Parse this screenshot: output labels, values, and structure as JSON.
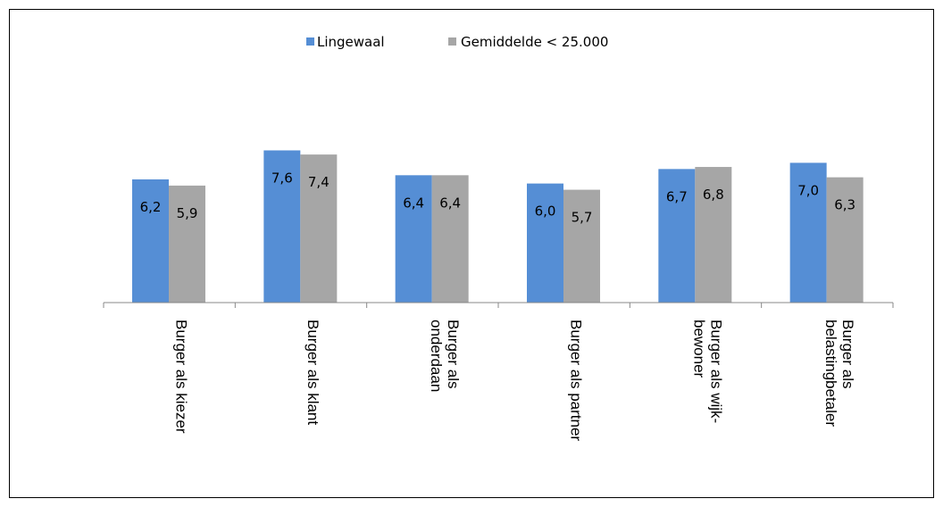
{
  "chart_data": {
    "type": "bar",
    "categories": [
      [
        "Burger als kiezer"
      ],
      [
        "Burger als klant"
      ],
      [
        "Burger als",
        "onderdaan"
      ],
      [
        "Burger als partner"
      ],
      [
        "Burger als wijk-",
        "bewoner"
      ],
      [
        "Burger als",
        "belastingbetaler"
      ]
    ],
    "series": [
      {
        "name": "Lingewaal",
        "color": "#558ED5",
        "values": [
          6.2,
          7.6,
          6.4,
          6.0,
          6.7,
          7.0
        ],
        "labels": [
          "6,2",
          "7,6",
          "6,4",
          "6,0",
          "6,7",
          "7,0"
        ]
      },
      {
        "name": "Gemiddelde < 25.000",
        "color": "#A6A6A6",
        "values": [
          5.9,
          7.4,
          6.4,
          5.7,
          6.8,
          6.3
        ],
        "labels": [
          "5,9",
          "7,4",
          "6,4",
          "5,7",
          "6,8",
          "6,3"
        ]
      }
    ],
    "title": "",
    "xlabel": "",
    "ylabel": "",
    "legend_position": "top",
    "grid": false
  }
}
